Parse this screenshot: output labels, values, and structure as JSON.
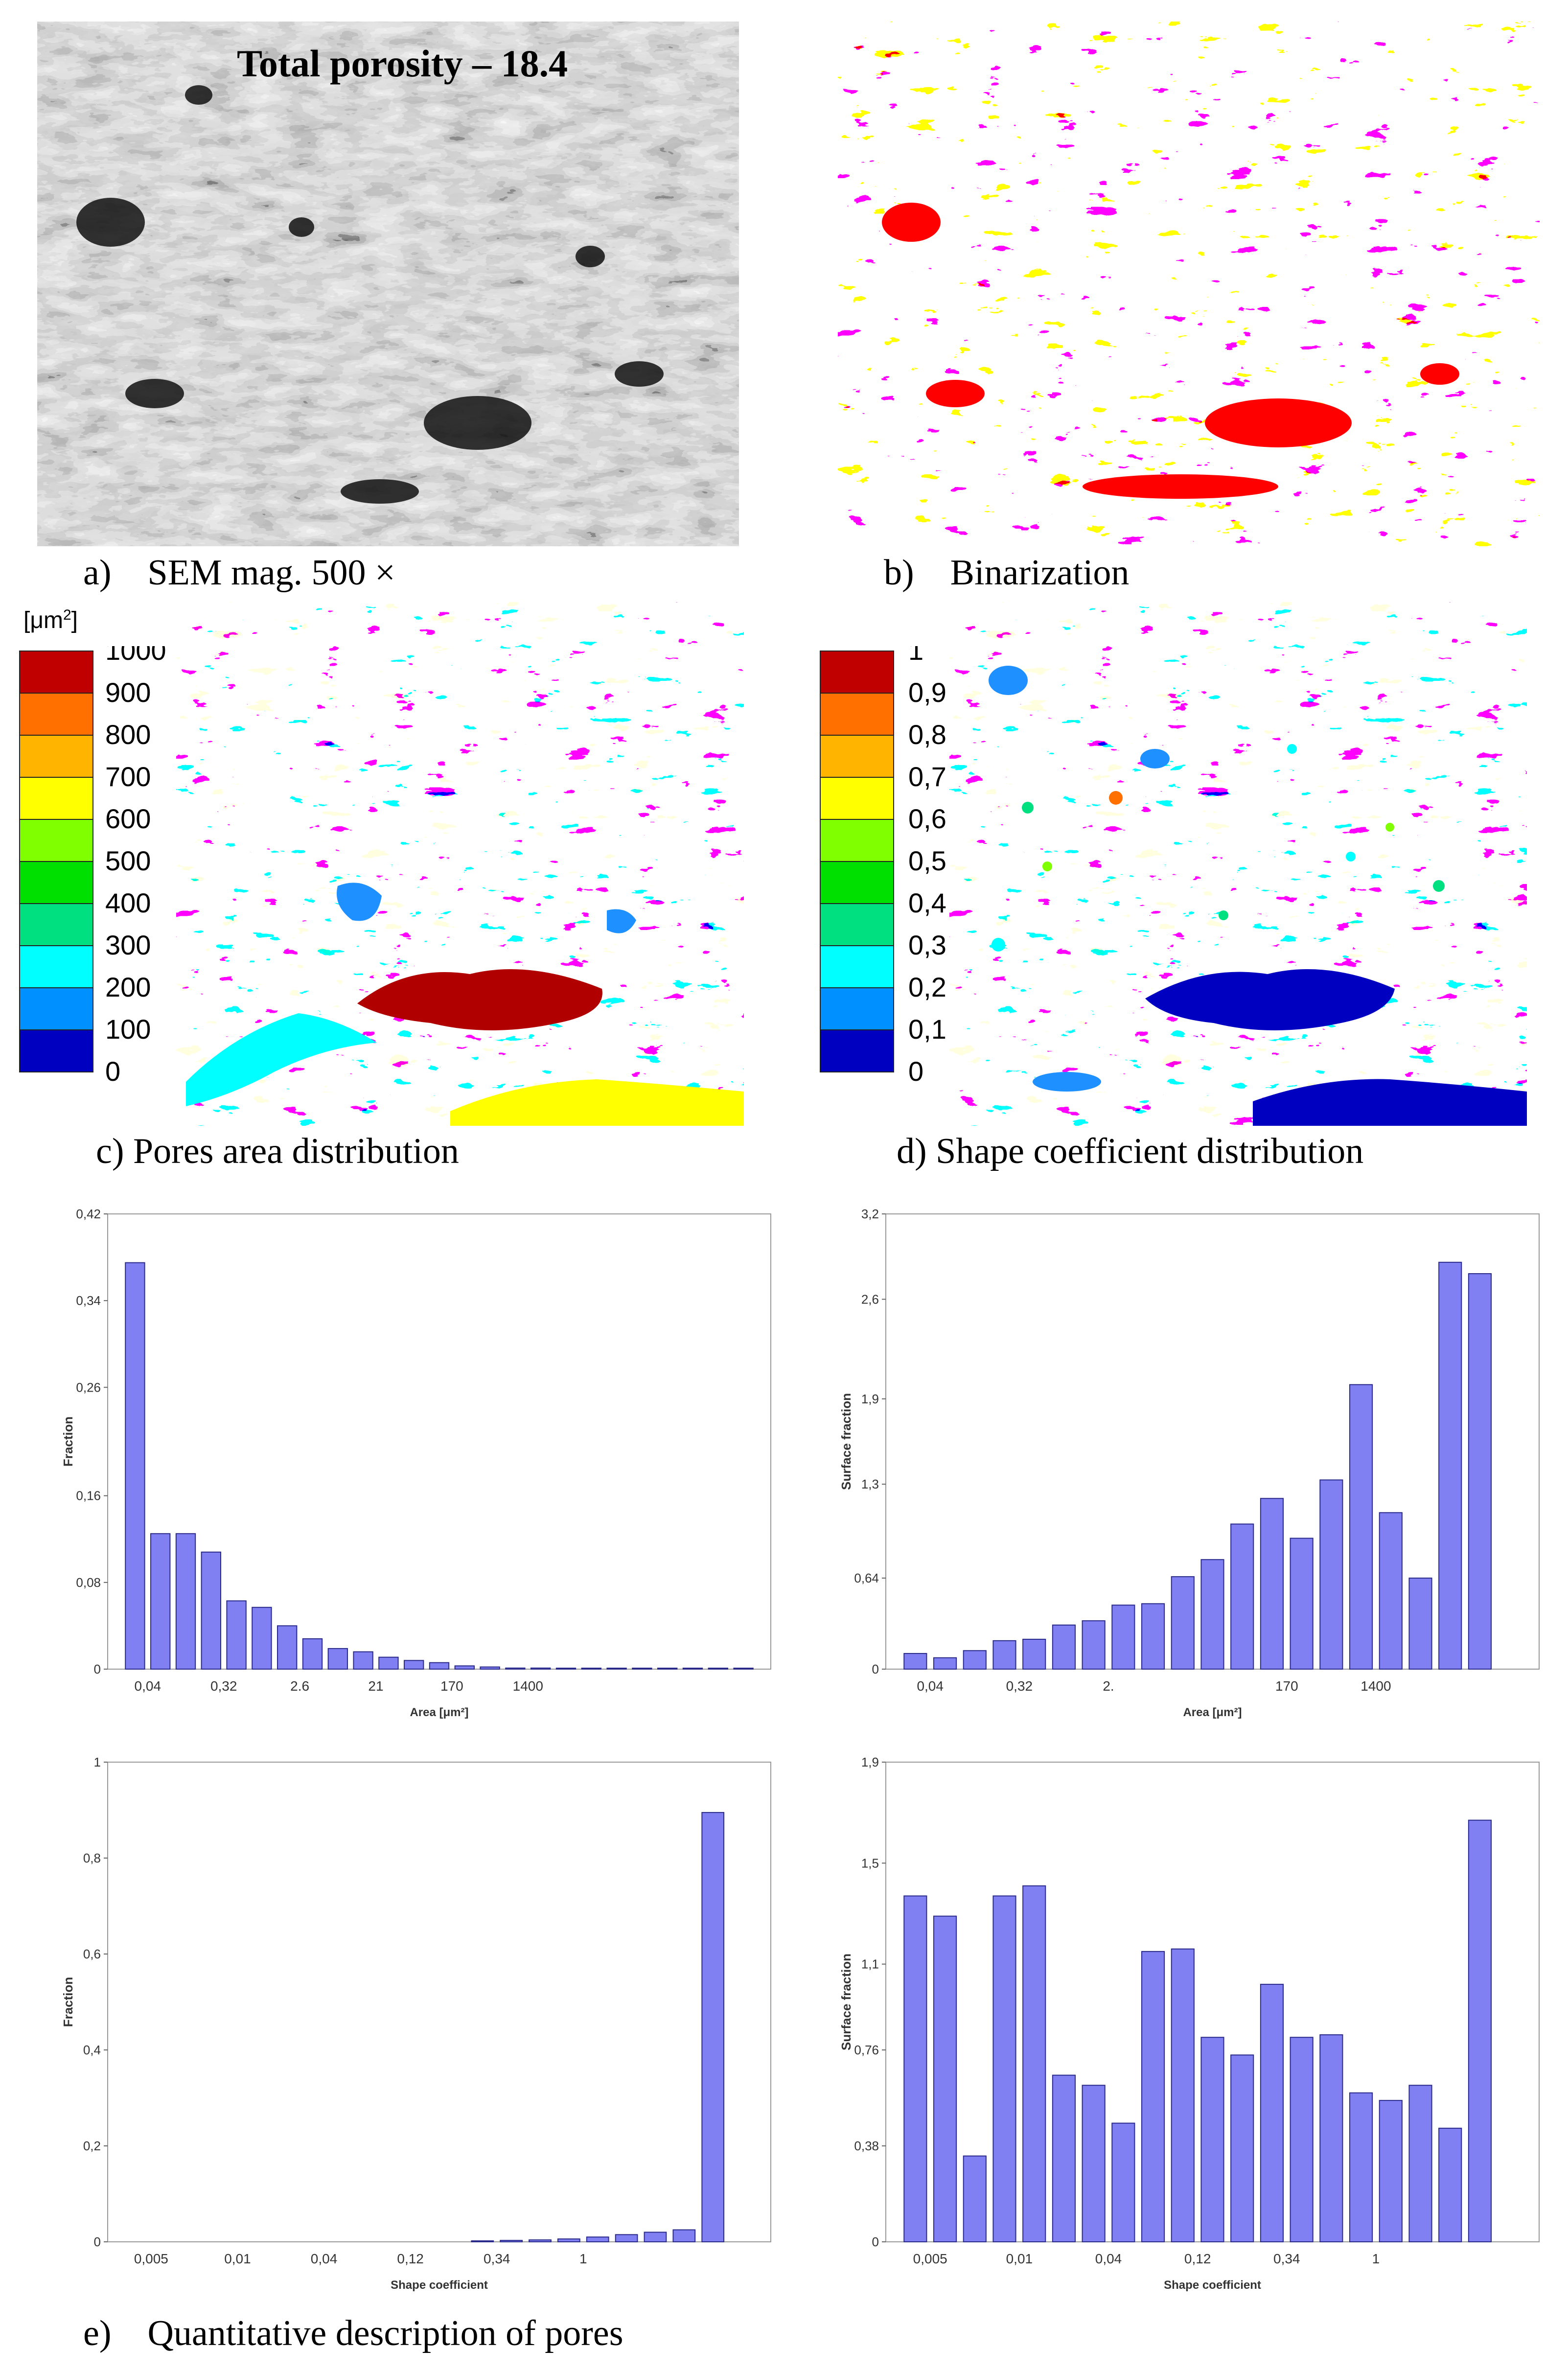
{
  "panel_a": {
    "overlay_text": "Total  porosity  –  18.4",
    "caption": "a)    SEM mag. 500 ×"
  },
  "panel_b": {
    "caption": "b)    Binarization"
  },
  "panel_c": {
    "caption": "c) Pores area distribution",
    "scale_unit_prefix": "[μm",
    "scale_unit_sup": "2",
    "scale_unit_suffix": "]",
    "scale_labels": [
      "1000",
      "900",
      "800",
      "700",
      "600",
      "500",
      "400",
      "300",
      "200",
      "100",
      "0"
    ],
    "scale_colors": [
      "#c00000",
      "#ff7000",
      "#ffb400",
      "#ffff00",
      "#80ff00",
      "#00e000",
      "#00e080",
      "#00ffff",
      "#0090ff",
      "#0000c0"
    ]
  },
  "panel_d": {
    "caption": "d) Shape coefficient distribution",
    "scale_labels": [
      "1",
      "0,9",
      "0,8",
      "0,7",
      "0,6",
      "0,5",
      "0,4",
      "0,3",
      "0,2",
      "0,1",
      "0"
    ],
    "scale_colors": [
      "#c00000",
      "#ff7000",
      "#ffb400",
      "#ffff00",
      "#80ff00",
      "#00e000",
      "#00e080",
      "#00ffff",
      "#0090ff",
      "#0000c0"
    ]
  },
  "caption_e": "e)    Quantitative description of pores",
  "chart_data": [
    {
      "id": "area-fraction",
      "type": "bar",
      "title": "",
      "xlabel": "Area [μm²]",
      "ylabel": "Fraction",
      "ylim": [
        0,
        0.42
      ],
      "yticks": [
        "0",
        "0,08",
        "0,16",
        "0,26",
        "0,34",
        "0,42"
      ],
      "ytick_values": [
        0,
        0.08,
        0.16,
        0.26,
        0.34,
        0.42
      ],
      "xticks": [
        "0,04",
        "0,32",
        "2.6",
        "21",
        "170",
        "1400"
      ],
      "xtick_slots": [
        1,
        4,
        7,
        10,
        13,
        16
      ],
      "values": [
        0.375,
        0.125,
        0.125,
        0.108,
        0.063,
        0.057,
        0.04,
        0.028,
        0.019,
        0.016,
        0.011,
        0.008,
        0.006,
        0.003,
        0.002,
        0.001,
        0.001,
        0.0005,
        0.0005,
        0.0003,
        0.0003,
        0.0002,
        0.0002,
        0.0001,
        0.0001
      ]
    },
    {
      "id": "area-surface",
      "type": "bar",
      "title": "",
      "xlabel": "Area [μm²]",
      "ylabel": "Surface fraction",
      "ylim": [
        0,
        3.2
      ],
      "yticks": [
        "0",
        "0,64",
        "1,3",
        "1,9",
        "2,6",
        "3,2"
      ],
      "ytick_values": [
        0,
        0.64,
        1.3,
        1.9,
        2.6,
        3.2
      ],
      "xticks": [
        "0,04",
        "0,32",
        "2.",
        "170",
        "1400"
      ],
      "xtick_slots": [
        1,
        4,
        7,
        13,
        16
      ],
      "values": [
        0.11,
        0.08,
        0.13,
        0.2,
        0.21,
        0.31,
        0.34,
        0.45,
        0.46,
        0.65,
        0.77,
        1.02,
        1.2,
        0.92,
        1.33,
        2.0,
        1.1,
        0.64,
        2.86,
        2.78,
        0
      ]
    },
    {
      "id": "shape-fraction",
      "type": "bar",
      "title": "",
      "xlabel": "Shape coefficient",
      "ylabel": "Fraction",
      "ylim": [
        0,
        1
      ],
      "yticks": [
        "0",
        "0,2",
        "0,4",
        "0,6",
        "0,8",
        "1"
      ],
      "ytick_values": [
        0,
        0.2,
        0.4,
        0.6,
        0.8,
        1
      ],
      "xticks": [
        "0,005",
        "0,01",
        "0,04",
        "0,12",
        "0,34",
        "1"
      ],
      "xtick_slots": [
        1,
        4,
        7,
        10,
        13,
        16
      ],
      "values": [
        0,
        0,
        0,
        0,
        0,
        0,
        0,
        0,
        0,
        0,
        0,
        0,
        0.002,
        0.003,
        0.004,
        0.006,
        0.01,
        0.015,
        0.02,
        0.025,
        0.895,
        0
      ]
    },
    {
      "id": "shape-surface",
      "type": "bar",
      "title": "",
      "xlabel": "Shape coefficient",
      "ylabel": "Surface fraction",
      "ylim": [
        0,
        1.9
      ],
      "yticks": [
        "0",
        "0,38",
        "0,76",
        "1,1",
        "1,5",
        "1,9"
      ],
      "ytick_values": [
        0,
        0.38,
        0.76,
        1.1,
        1.5,
        1.9
      ],
      "xticks": [
        "0,005",
        "0,01",
        "0,04",
        "0,12",
        "0,34",
        "1"
      ],
      "xtick_slots": [
        1,
        4,
        7,
        10,
        13,
        16
      ],
      "values": [
        1.37,
        1.29,
        0.34,
        1.37,
        1.41,
        0.66,
        0.62,
        0.47,
        1.15,
        1.16,
        0.81,
        0.74,
        1.02,
        0.81,
        0.82,
        0.59,
        0.56,
        0.62,
        0.45,
        1.67,
        0
      ]
    }
  ]
}
